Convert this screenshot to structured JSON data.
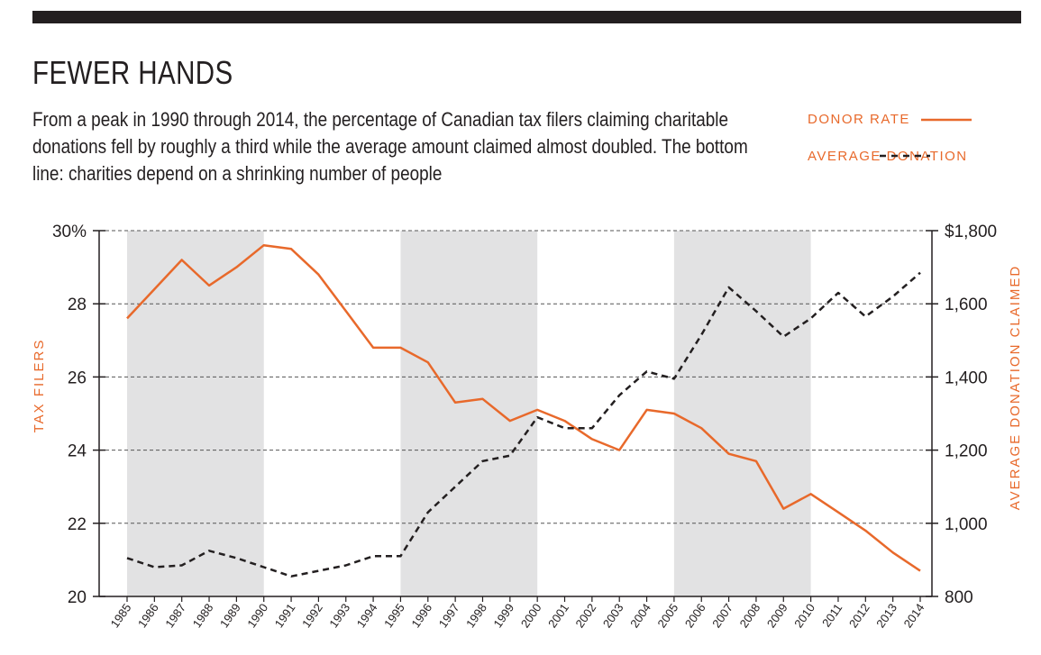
{
  "header": {
    "title": "FEWER HANDS",
    "subtitle": "From a peak in 1990 through 2014, the percentage of Canadian tax filers claiming charitable donations fell by roughly a third while the average amount claimed almost doubled. The bottom line: charities depend on a shrinking number of people"
  },
  "legend": {
    "donor_rate": "DONOR RATE",
    "average_donation": "AVERAGE DONATION"
  },
  "colors": {
    "donor": "#e8692b",
    "donation": "#231f20",
    "shade": "#e2e2e3",
    "axis": "#231f20"
  },
  "chart_data": {
    "type": "line",
    "title": "FEWER HANDS",
    "x": [
      1985,
      1986,
      1987,
      1988,
      1989,
      1990,
      1991,
      1992,
      1993,
      1994,
      1995,
      1996,
      1997,
      1998,
      1999,
      2000,
      2001,
      2002,
      2003,
      2004,
      2005,
      2006,
      2007,
      2008,
      2009,
      2010,
      2011,
      2012,
      2013,
      2014
    ],
    "x_tick_labels": [
      "1985",
      "1986",
      "1987",
      "1988",
      "1989",
      "1990",
      "1991",
      "1992",
      "1993",
      "1994",
      "1995",
      "1996",
      "1997",
      "1998",
      "1999",
      "2000",
      "2001",
      "2002",
      "2003",
      "2004",
      "2005",
      "2006",
      "2007",
      "2008",
      "2009",
      "2010",
      "2011",
      "2012",
      "2013",
      "2014"
    ],
    "series": [
      {
        "name": "DONOR RATE",
        "axis": "left",
        "style": "solid",
        "values": [
          27.6,
          28.4,
          29.2,
          28.5,
          29.0,
          29.6,
          29.5,
          28.8,
          27.8,
          26.8,
          26.8,
          26.4,
          25.3,
          25.4,
          24.8,
          25.1,
          24.8,
          24.3,
          24.0,
          25.1,
          25.0,
          24.6,
          23.9,
          23.7,
          22.4,
          22.8,
          22.3,
          21.8,
          21.2,
          20.7
        ]
      },
      {
        "name": "AVERAGE DONATION",
        "axis": "right",
        "style": "dashed",
        "values": [
          905,
          880,
          885,
          925,
          905,
          880,
          855,
          870,
          885,
          910,
          910,
          1030,
          1100,
          1170,
          1185,
          1290,
          1260,
          1260,
          1350,
          1415,
          1395,
          1515,
          1645,
          1580,
          1510,
          1560,
          1630,
          1565,
          1620,
          1685
        ]
      }
    ],
    "y_left": {
      "label": "TAX FILERS",
      "ylim": [
        20,
        30
      ],
      "ticks": [
        20,
        22,
        24,
        26,
        28,
        30
      ],
      "tick_labels": [
        "20",
        "22",
        "24",
        "26",
        "28",
        "30%"
      ]
    },
    "y_right": {
      "label": "AVERAGE DONATION CLAIMED",
      "ylim": [
        800,
        1800
      ],
      "ticks": [
        800,
        1000,
        1200,
        1400,
        1600,
        1800
      ],
      "tick_labels": [
        "800",
        "1,000",
        "1,200",
        "1,400",
        "1,600",
        "$1,800"
      ]
    },
    "shaded_periods": [
      [
        1985,
        1990
      ],
      [
        1995,
        2000
      ],
      [
        2005,
        2010
      ]
    ],
    "grid": "horizontal dashed",
    "legend_position": "top-right"
  }
}
